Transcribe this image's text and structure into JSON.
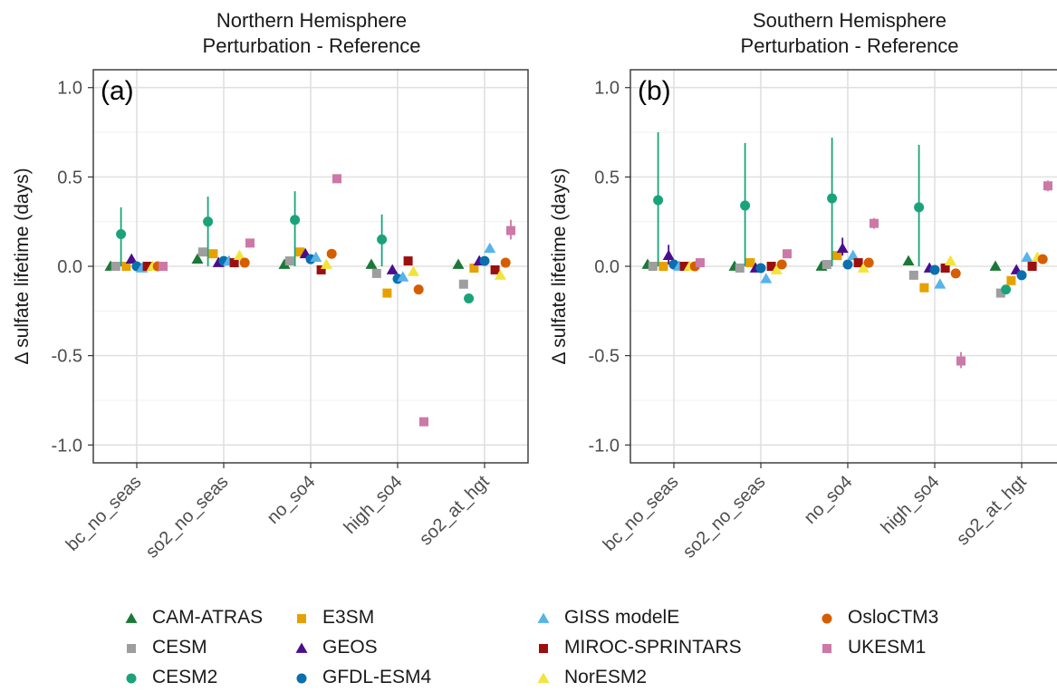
{
  "chart_data": [
    {
      "type": "scatter",
      "panel_label": "(a)",
      "title": "Northern Hemisphere",
      "subtitle": "Perturbation - Reference",
      "xlabel": "",
      "ylabel": "Δ sulfate lifetime (days)",
      "ylim": [
        -1.1,
        1.1
      ],
      "yticks": [
        "-1.0",
        "-0.5",
        "0.0",
        "0.5",
        "1.0"
      ],
      "ytick_values": [
        -1.0,
        -0.5,
        0.0,
        0.5,
        1.0
      ],
      "categories": [
        "bc_no_seas",
        "so2_no_seas",
        "no_so4",
        "high_so4",
        "so2_at_hgt"
      ],
      "grid": true,
      "series": [
        {
          "name": "CAM-ATRAS",
          "values": [
            0.0,
            0.04,
            0.01,
            0.01,
            0.01
          ]
        },
        {
          "name": "CESM",
          "values": [
            0.0,
            0.08,
            0.03,
            -0.04,
            -0.1
          ]
        },
        {
          "name": "CESM2",
          "values": [
            0.18,
            0.25,
            0.26,
            0.15,
            -0.18
          ],
          "err_low": [
            0.0,
            0.0,
            0.0,
            0.0,
            null
          ],
          "err_high": [
            0.33,
            0.39,
            0.42,
            0.29,
            null
          ]
        },
        {
          "name": "E3SM",
          "values": [
            0.0,
            0.07,
            0.08,
            -0.15,
            -0.01
          ]
        },
        {
          "name": "GEOS",
          "values": [
            0.04,
            0.02,
            0.07,
            -0.02,
            0.03
          ]
        },
        {
          "name": "GFDL-ESM4",
          "values": [
            0.0,
            0.03,
            0.04,
            -0.07,
            0.03
          ]
        },
        {
          "name": "GISS modelE",
          "values": [
            -0.01,
            0.03,
            0.05,
            -0.06,
            0.1
          ]
        },
        {
          "name": "MIROC-SPRINTARS",
          "values": [
            0.0,
            0.02,
            -0.02,
            0.03,
            -0.02
          ]
        },
        {
          "name": "NorESM2",
          "values": [
            0.0,
            0.06,
            0.01,
            -0.03,
            -0.05
          ]
        },
        {
          "name": "OsloCTM3",
          "values": [
            0.0,
            0.02,
            0.07,
            -0.13,
            0.02
          ]
        },
        {
          "name": "UKESM1",
          "values": [
            0.0,
            0.13,
            0.49,
            -0.87,
            0.2
          ],
          "err_low": [
            null,
            null,
            null,
            null,
            0.15
          ],
          "err_high": [
            null,
            null,
            null,
            null,
            0.26
          ]
        }
      ]
    },
    {
      "type": "scatter",
      "panel_label": "(b)",
      "title": "Southern Hemisphere",
      "subtitle": "Perturbation - Reference",
      "xlabel": "",
      "ylabel": "Δ sulfate lifetime (days)",
      "ylim": [
        -1.1,
        1.1
      ],
      "yticks": [
        "-1.0",
        "-0.5",
        "0.0",
        "0.5",
        "1.0"
      ],
      "ytick_values": [
        -1.0,
        -0.5,
        0.0,
        0.5,
        1.0
      ],
      "categories": [
        "bc_no_seas",
        "so2_no_seas",
        "no_so4",
        "high_so4",
        "so2_at_hgt"
      ],
      "grid": true,
      "series": [
        {
          "name": "CAM-ATRAS",
          "values": [
            0.01,
            0.0,
            0.0,
            0.03,
            0.0
          ]
        },
        {
          "name": "CESM",
          "values": [
            0.0,
            -0.01,
            0.01,
            -0.05,
            -0.15
          ]
        },
        {
          "name": "CESM2",
          "values": [
            0.37,
            0.34,
            0.38,
            0.33,
            -0.13
          ],
          "err_low": [
            0.0,
            0.0,
            0.0,
            0.0,
            null
          ],
          "err_high": [
            0.75,
            0.69,
            0.72,
            0.68,
            null
          ]
        },
        {
          "name": "E3SM",
          "values": [
            0.0,
            0.02,
            0.06,
            -0.12,
            -0.08
          ]
        },
        {
          "name": "GEOS",
          "values": [
            0.06,
            -0.01,
            0.1,
            -0.01,
            -0.02
          ],
          "err_low": [
            0.01,
            null,
            0.06,
            null,
            null
          ],
          "err_high": [
            0.12,
            null,
            0.16,
            null,
            null
          ]
        },
        {
          "name": "GFDL-ESM4",
          "values": [
            0.01,
            -0.01,
            0.01,
            -0.02,
            -0.05
          ]
        },
        {
          "name": "GISS modelE",
          "values": [
            0.0,
            -0.07,
            0.06,
            -0.1,
            0.05
          ]
        },
        {
          "name": "MIROC-SPRINTARS",
          "values": [
            0.0,
            0.0,
            0.02,
            -0.01,
            0.0
          ]
        },
        {
          "name": "NorESM2",
          "values": [
            0.0,
            -0.02,
            -0.01,
            0.03,
            0.05
          ]
        },
        {
          "name": "OsloCTM3",
          "values": [
            0.0,
            0.01,
            0.02,
            -0.04,
            0.04
          ]
        },
        {
          "name": "UKESM1",
          "values": [
            0.02,
            0.07,
            0.24,
            -0.53,
            0.45
          ],
          "err_low": [
            null,
            null,
            0.21,
            -0.57,
            0.42
          ],
          "err_high": [
            null,
            null,
            0.27,
            -0.48,
            0.48
          ]
        }
      ]
    }
  ],
  "legend": {
    "placement": "bottom",
    "items": [
      {
        "name": "CAM-ATRAS",
        "color": "#1b7837",
        "shape": "triangle"
      },
      {
        "name": "CESM",
        "color": "#9e9e9e",
        "shape": "square"
      },
      {
        "name": "CESM2",
        "color": "#1aa37a",
        "shape": "circle"
      },
      {
        "name": "E3SM",
        "color": "#e6a100",
        "shape": "square"
      },
      {
        "name": "GEOS",
        "color": "#4b0d8c",
        "shape": "triangle"
      },
      {
        "name": "GFDL-ESM4",
        "color": "#0a6fae",
        "shape": "circle"
      },
      {
        "name": "GISS modelE",
        "color": "#56b4e9",
        "shape": "triangle"
      },
      {
        "name": "MIROC-SPRINTARS",
        "color": "#9b0f0f",
        "shape": "square"
      },
      {
        "name": "NorESM2",
        "color": "#f2e43a",
        "shape": "triangle"
      },
      {
        "name": "OsloCTM3",
        "color": "#d55e00",
        "shape": "circle"
      },
      {
        "name": "UKESM1",
        "color": "#cc79a7",
        "shape": "square"
      }
    ]
  }
}
